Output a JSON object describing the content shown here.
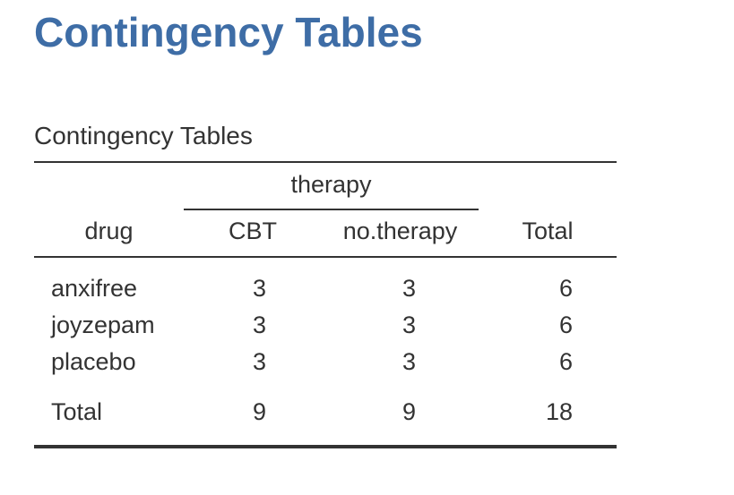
{
  "page": {
    "heading": "Contingency Tables"
  },
  "table": {
    "caption": "Contingency Tables",
    "column_group_label": "therapy",
    "headers": {
      "row_variable": "drug",
      "col1": "CBT",
      "col2": "no.therapy",
      "total": "Total"
    },
    "rows": [
      {
        "label": "anxifree",
        "cbt": "3",
        "no_therapy": "3",
        "total": "6"
      },
      {
        "label": "joyzepam",
        "cbt": "3",
        "no_therapy": "3",
        "total": "6"
      },
      {
        "label": "placebo",
        "cbt": "3",
        "no_therapy": "3",
        "total": "6"
      }
    ],
    "total_row": {
      "label": "Total",
      "cbt": "9",
      "no_therapy": "9",
      "total": "18"
    }
  },
  "colors": {
    "heading": "#3e6da6",
    "text": "#333333",
    "rules": "#333333"
  }
}
